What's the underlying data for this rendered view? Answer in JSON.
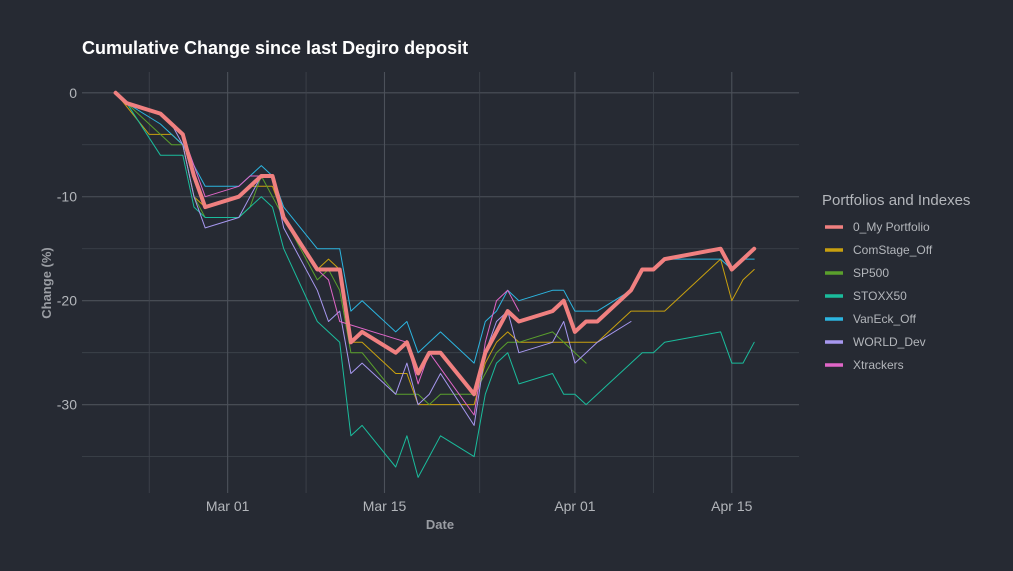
{
  "chart_data": {
    "type": "line",
    "title": "Cumulative Change since last Degiro deposit",
    "xlabel": "Date",
    "ylabel": "Change (%)",
    "x_type": "date",
    "xlim": [
      "2020-02-17",
      "2020-04-21"
    ],
    "ylim": [
      -38.5,
      2
    ],
    "xticks": [
      {
        "value": "2020-03-01",
        "label": "Mar 01"
      },
      {
        "value": "2020-03-15",
        "label": "Mar 15"
      },
      {
        "value": "2020-04-01",
        "label": "Apr 01"
      },
      {
        "value": "2020-04-15",
        "label": "Apr 15"
      }
    ],
    "yticks": [
      {
        "value": 0,
        "label": "0"
      },
      {
        "value": -10,
        "label": "-10"
      },
      {
        "value": -20,
        "label": "-20"
      },
      {
        "value": -30,
        "label": "-30"
      }
    ],
    "grid": true,
    "legend": {
      "title": "Portfolios and Indexes",
      "position": "right"
    },
    "series": [
      {
        "name": "ComStage_Off",
        "color": "#c8a00f",
        "points": [
          [
            "2020-02-20",
            0
          ],
          [
            "2020-02-23",
            -4
          ],
          [
            "2020-02-24",
            -4
          ],
          [
            "2020-02-25",
            -4
          ],
          [
            "2020-02-26",
            -5
          ],
          [
            "2020-02-27",
            -10
          ],
          [
            "2020-02-28",
            -11
          ],
          [
            "2020-03-02",
            -10
          ],
          [
            "2020-03-03",
            -9
          ],
          [
            "2020-03-04",
            -9
          ],
          [
            "2020-03-05",
            -9
          ],
          [
            "2020-03-06",
            -12
          ],
          [
            "2020-03-09",
            -17
          ],
          [
            "2020-03-10",
            -16
          ],
          [
            "2020-03-11",
            -17
          ],
          [
            "2020-03-12",
            -24
          ],
          [
            "2020-03-13",
            -24
          ],
          [
            "2020-03-16",
            -27
          ],
          [
            "2020-03-17",
            -27
          ],
          [
            "2020-03-18",
            -30
          ],
          [
            "2020-03-19",
            -30
          ],
          [
            "2020-03-20",
            -30
          ],
          [
            "2020-03-23",
            -30
          ],
          [
            "2020-03-24",
            -26
          ],
          [
            "2020-03-25",
            -24
          ],
          [
            "2020-03-26",
            -23
          ],
          [
            "2020-03-27",
            -24
          ],
          [
            "2020-03-30",
            -24
          ],
          [
            "2020-03-31",
            -24
          ],
          [
            "2020-04-01",
            -24
          ],
          [
            "2020-04-02",
            -24
          ],
          [
            "2020-04-03",
            -24
          ],
          [
            "2020-04-06",
            -21
          ],
          [
            "2020-04-07",
            -21
          ],
          [
            "2020-04-08",
            -21
          ],
          [
            "2020-04-09",
            -21
          ],
          [
            "2020-04-14",
            -16
          ],
          [
            "2020-04-15",
            -20
          ],
          [
            "2020-04-16",
            -18
          ],
          [
            "2020-04-17",
            -17
          ]
        ]
      },
      {
        "name": "SP500",
        "color": "#5aa02c",
        "points": [
          [
            "2020-02-20",
            0
          ],
          [
            "2020-02-21",
            -1
          ],
          [
            "2020-02-24",
            -4
          ],
          [
            "2020-02-25",
            -5
          ],
          [
            "2020-02-26",
            -5
          ],
          [
            "2020-02-27",
            -10
          ],
          [
            "2020-02-28",
            -12
          ],
          [
            "2020-03-02",
            -12
          ],
          [
            "2020-03-03",
            -11
          ],
          [
            "2020-03-04",
            -8
          ],
          [
            "2020-03-05",
            -10
          ],
          [
            "2020-03-06",
            -12
          ],
          [
            "2020-03-09",
            -18
          ],
          [
            "2020-03-10",
            -17
          ],
          [
            "2020-03-11",
            -19
          ],
          [
            "2020-03-12",
            -25
          ],
          [
            "2020-03-13",
            -25
          ],
          [
            "2020-03-16",
            -29
          ],
          [
            "2020-03-17",
            -29
          ],
          [
            "2020-03-18",
            -29
          ],
          [
            "2020-03-19",
            -30
          ],
          [
            "2020-03-20",
            -29
          ],
          [
            "2020-03-23",
            -29
          ],
          [
            "2020-03-24",
            -27
          ],
          [
            "2020-03-25",
            -25
          ],
          [
            "2020-03-26",
            -24
          ],
          [
            "2020-03-27",
            -24
          ],
          [
            "2020-03-30",
            -23
          ],
          [
            "2020-03-31",
            -24
          ],
          [
            "2020-04-01",
            -25
          ],
          [
            "2020-04-02",
            -26
          ]
        ]
      },
      {
        "name": "STOXX50",
        "color": "#1abc9c",
        "points": [
          [
            "2020-02-20",
            0
          ],
          [
            "2020-02-21",
            -1
          ],
          [
            "2020-02-24",
            -6
          ],
          [
            "2020-02-25",
            -6
          ],
          [
            "2020-02-26",
            -6
          ],
          [
            "2020-02-27",
            -11
          ],
          [
            "2020-02-28",
            -12
          ],
          [
            "2020-03-02",
            -12
          ],
          [
            "2020-03-03",
            -11
          ],
          [
            "2020-03-04",
            -10
          ],
          [
            "2020-03-05",
            -11
          ],
          [
            "2020-03-06",
            -15
          ],
          [
            "2020-03-09",
            -22
          ],
          [
            "2020-03-10",
            -23
          ],
          [
            "2020-03-11",
            -24
          ],
          [
            "2020-03-12",
            -33
          ],
          [
            "2020-03-13",
            -32
          ],
          [
            "2020-03-16",
            -36
          ],
          [
            "2020-03-17",
            -33
          ],
          [
            "2020-03-18",
            -37
          ],
          [
            "2020-03-19",
            -35
          ],
          [
            "2020-03-20",
            -33
          ],
          [
            "2020-03-23",
            -35
          ],
          [
            "2020-03-24",
            -29
          ],
          [
            "2020-03-25",
            -26
          ],
          [
            "2020-03-26",
            -25
          ],
          [
            "2020-03-27",
            -28
          ],
          [
            "2020-03-30",
            -27
          ],
          [
            "2020-03-31",
            -29
          ],
          [
            "2020-04-01",
            -29
          ],
          [
            "2020-04-02",
            -30
          ],
          [
            "2020-04-03",
            -29
          ],
          [
            "2020-04-06",
            -26
          ],
          [
            "2020-04-07",
            -25
          ],
          [
            "2020-04-08",
            -25
          ],
          [
            "2020-04-09",
            -24
          ],
          [
            "2020-04-14",
            -23
          ],
          [
            "2020-04-15",
            -26
          ],
          [
            "2020-04-16",
            -26
          ],
          [
            "2020-04-17",
            -24
          ]
        ]
      },
      {
        "name": "VanEck_Off",
        "color": "#2cb5e0",
        "points": [
          [
            "2020-02-20",
            0
          ],
          [
            "2020-02-21",
            -1
          ],
          [
            "2020-02-24",
            -3
          ],
          [
            "2020-02-25",
            -4
          ],
          [
            "2020-02-26",
            -5
          ],
          [
            "2020-02-27",
            -7
          ],
          [
            "2020-02-28",
            -9
          ],
          [
            "2020-03-02",
            -9
          ],
          [
            "2020-03-03",
            -8
          ],
          [
            "2020-03-04",
            -7
          ],
          [
            "2020-03-05",
            -8
          ],
          [
            "2020-03-06",
            -11
          ],
          [
            "2020-03-09",
            -15
          ],
          [
            "2020-03-10",
            -15
          ],
          [
            "2020-03-11",
            -15
          ],
          [
            "2020-03-12",
            -21
          ],
          [
            "2020-03-13",
            -20
          ],
          [
            "2020-03-16",
            -23
          ],
          [
            "2020-03-17",
            -22
          ],
          [
            "2020-03-18",
            -25
          ],
          [
            "2020-03-19",
            -24
          ],
          [
            "2020-03-20",
            -23
          ],
          [
            "2020-03-23",
            -26
          ],
          [
            "2020-03-24",
            -22
          ],
          [
            "2020-03-25",
            -21
          ],
          [
            "2020-03-26",
            -19
          ],
          [
            "2020-03-27",
            -20
          ],
          [
            "2020-03-30",
            -19
          ],
          [
            "2020-03-31",
            -19
          ],
          [
            "2020-04-01",
            -21
          ],
          [
            "2020-04-02",
            -21
          ],
          [
            "2020-04-03",
            -21
          ],
          [
            "2020-04-06",
            -19
          ],
          [
            "2020-04-07",
            -17
          ],
          [
            "2020-04-08",
            -17
          ],
          [
            "2020-04-09",
            -16
          ],
          [
            "2020-04-14",
            -16
          ],
          [
            "2020-04-15",
            -17
          ],
          [
            "2020-04-16",
            -16
          ],
          [
            "2020-04-17",
            -16
          ]
        ]
      },
      {
        "name": "WORLD_Dev",
        "color": "#a798f0",
        "points": [
          [
            "2020-02-20",
            0
          ],
          [
            "2020-02-21",
            -1
          ],
          [
            "2020-02-24",
            -2
          ],
          [
            "2020-02-25",
            -3
          ],
          [
            "2020-02-26",
            -5
          ],
          [
            "2020-02-27",
            -10
          ],
          [
            "2020-02-28",
            -13
          ],
          [
            "2020-03-02",
            -12
          ],
          [
            "2020-03-03",
            -10
          ],
          [
            "2020-03-04",
            -8
          ],
          [
            "2020-03-05",
            -8
          ],
          [
            "2020-03-06",
            -13
          ],
          [
            "2020-03-09",
            -19
          ],
          [
            "2020-03-10",
            -22
          ],
          [
            "2020-03-11",
            -21
          ],
          [
            "2020-03-12",
            -27
          ],
          [
            "2020-03-13",
            -26
          ],
          [
            "2020-03-16",
            -29
          ],
          [
            "2020-03-17",
            -26
          ],
          [
            "2020-03-18",
            -30
          ],
          [
            "2020-03-19",
            -29
          ],
          [
            "2020-03-20",
            -27
          ],
          [
            "2020-03-23",
            -32
          ],
          [
            "2020-03-24",
            -25
          ],
          [
            "2020-03-25",
            -22
          ],
          [
            "2020-03-26",
            -21
          ],
          [
            "2020-03-27",
            -25
          ],
          [
            "2020-03-30",
            -24
          ],
          [
            "2020-03-31",
            -22
          ],
          [
            "2020-04-01",
            -26
          ],
          [
            "2020-04-02",
            -25
          ],
          [
            "2020-04-03",
            -24
          ],
          [
            "2020-04-06",
            -22
          ]
        ]
      },
      {
        "name": "Xtrackers",
        "color": "#e066c8",
        "points": [
          [
            "2020-02-20",
            0
          ],
          [
            "2020-02-21",
            -1
          ],
          [
            "2020-02-24",
            -2
          ],
          [
            "2020-02-25",
            -3
          ],
          [
            "2020-02-26",
            -4
          ],
          [
            "2020-02-27",
            -7
          ],
          [
            "2020-02-28",
            -10
          ],
          [
            "2020-03-02",
            -9
          ],
          [
            "2020-03-03",
            -8
          ],
          [
            "2020-03-04",
            -8
          ],
          [
            "2020-03-05",
            -8
          ],
          [
            "2020-03-06",
            -12
          ],
          [
            "2020-03-09",
            -17
          ],
          [
            "2020-03-10",
            -18
          ],
          [
            "2020-03-11",
            -22
          ],
          [
            "2020-03-17",
            -24
          ],
          [
            "2020-03-18",
            -28
          ],
          [
            "2020-03-19",
            -25
          ],
          [
            "2020-03-23",
            -31
          ],
          [
            "2020-03-24",
            -24
          ],
          [
            "2020-03-25",
            -20
          ],
          [
            "2020-03-26",
            -19
          ],
          [
            "2020-03-27",
            -21
          ]
        ]
      },
      {
        "name": "0_My Portfolio",
        "color": "#f08080",
        "width": 4,
        "points": [
          [
            "2020-02-20",
            0
          ],
          [
            "2020-02-21",
            -1
          ],
          [
            "2020-02-24",
            -2
          ],
          [
            "2020-02-25",
            -3
          ],
          [
            "2020-02-26",
            -4
          ],
          [
            "2020-02-27",
            -8
          ],
          [
            "2020-02-28",
            -11
          ],
          [
            "2020-03-02",
            -10
          ],
          [
            "2020-03-03",
            -9
          ],
          [
            "2020-03-04",
            -8
          ],
          [
            "2020-03-05",
            -8
          ],
          [
            "2020-03-06",
            -12
          ],
          [
            "2020-03-09",
            -17
          ],
          [
            "2020-03-10",
            -17
          ],
          [
            "2020-03-11",
            -17
          ],
          [
            "2020-03-12",
            -24
          ],
          [
            "2020-03-13",
            -23
          ],
          [
            "2020-03-16",
            -25
          ],
          [
            "2020-03-17",
            -24
          ],
          [
            "2020-03-18",
            -27
          ],
          [
            "2020-03-19",
            -25
          ],
          [
            "2020-03-20",
            -25
          ],
          [
            "2020-03-23",
            -29
          ],
          [
            "2020-03-24",
            -25
          ],
          [
            "2020-03-25",
            -23
          ],
          [
            "2020-03-26",
            -21
          ],
          [
            "2020-03-27",
            -22
          ],
          [
            "2020-03-30",
            -21
          ],
          [
            "2020-03-31",
            -20
          ],
          [
            "2020-04-01",
            -23
          ],
          [
            "2020-04-02",
            -22
          ],
          [
            "2020-04-03",
            -22
          ],
          [
            "2020-04-06",
            -19
          ],
          [
            "2020-04-07",
            -17
          ],
          [
            "2020-04-08",
            -17
          ],
          [
            "2020-04-09",
            -16
          ],
          [
            "2020-04-14",
            -15
          ],
          [
            "2020-04-15",
            -17
          ],
          [
            "2020-04-16",
            -16
          ],
          [
            "2020-04-17",
            -15
          ]
        ]
      }
    ],
    "legend_order": [
      "0_My Portfolio",
      "ComStage_Off",
      "SP500",
      "STOXX50",
      "VanEck_Off",
      "WORLD_Dev",
      "Xtrackers"
    ]
  }
}
